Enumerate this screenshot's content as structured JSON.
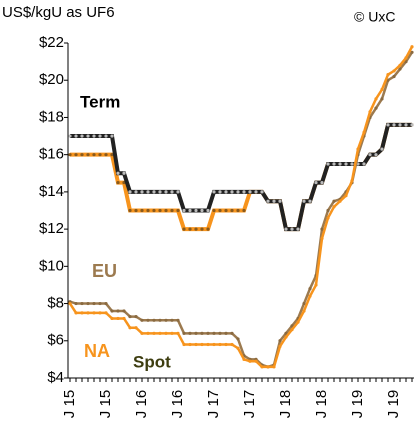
{
  "chart_data": {
    "type": "line",
    "ylabel": "US$/kgU as UF6",
    "source": "© UxC",
    "annotations": [
      "Term",
      "EU",
      "NA",
      "Spot"
    ],
    "categories": [
      "J 15",
      null,
      null,
      null,
      null,
      null,
      "J 15",
      null,
      null,
      null,
      null,
      null,
      "J 16",
      null,
      null,
      null,
      null,
      null,
      "J 16",
      null,
      null,
      null,
      null,
      null,
      "J 17",
      null,
      null,
      null,
      null,
      null,
      "J 17",
      null,
      null,
      null,
      null,
      null,
      "J 18",
      null,
      null,
      null,
      null,
      null,
      "J 18",
      null,
      null,
      null,
      null,
      null,
      "J 19",
      null,
      null,
      null,
      null,
      null,
      "J 19",
      null,
      null,
      null
    ],
    "series": [
      {
        "name": "Term NA",
        "color": "#f7941d",
        "dot": "#8a5a1c",
        "width": 4,
        "values": [
          16,
          16,
          16,
          16,
          16,
          16,
          16,
          16,
          14.5,
          14.5,
          13,
          13,
          13,
          13,
          13,
          13,
          13,
          13,
          13,
          12,
          12,
          12,
          12,
          12,
          13,
          13,
          13,
          13,
          13,
          13,
          14,
          14,
          14,
          13.5,
          13.5,
          13.5,
          12,
          12,
          12,
          13.5,
          13.5,
          14.5,
          14.5,
          15.5,
          15.5,
          15.5,
          15.5,
          15.5,
          15.5,
          15.5,
          16,
          16,
          16.3,
          17.6,
          17.6,
          17.6,
          17.6,
          17.6
        ]
      },
      {
        "name": "Term EU",
        "color": "#222222",
        "dot": "#bbbbbb",
        "width": 4,
        "values": [
          17,
          17,
          17,
          17,
          17,
          17,
          17,
          17,
          15,
          15,
          14,
          14,
          14,
          14,
          14,
          14,
          14,
          14,
          14,
          13,
          13,
          13,
          13,
          13,
          14,
          14,
          14,
          14,
          14,
          14,
          14,
          14,
          14,
          13.5,
          13.5,
          13.5,
          12,
          12,
          12,
          13.5,
          13.5,
          14.5,
          14.5,
          15.5,
          15.5,
          15.5,
          15.5,
          15.5,
          15.5,
          15.5,
          16,
          16,
          16.3,
          17.6,
          17.6,
          17.6,
          17.6,
          17.6
        ]
      },
      {
        "name": "Spot EU",
        "color": "#9c7a4f",
        "dot": "#8a6a40",
        "width": 2.5,
        "values": [
          8.1,
          8,
          8,
          8,
          8,
          8,
          8,
          7.6,
          7.6,
          7.6,
          7.3,
          7.3,
          7.1,
          7.1,
          7.1,
          7.1,
          7.1,
          7.1,
          7.1,
          6.4,
          6.4,
          6.4,
          6.4,
          6.4,
          6.4,
          6.4,
          6.4,
          6.4,
          6.1,
          5.2,
          5,
          5,
          4.7,
          4.6,
          4.7,
          6,
          6.4,
          6.8,
          7.2,
          8,
          8.8,
          9.5,
          12,
          13,
          13.5,
          13.6,
          14,
          14.5,
          16,
          17,
          18,
          18.5,
          19,
          20,
          20.2,
          20.6,
          21,
          21.5
        ]
      },
      {
        "name": "Spot NA",
        "color": "#f7941d",
        "dot": "#f7941d",
        "width": 2.5,
        "values": [
          8,
          7.5,
          7.5,
          7.5,
          7.5,
          7.5,
          7.5,
          7.2,
          7.2,
          7.2,
          6.7,
          6.7,
          6.4,
          6.4,
          6.4,
          6.4,
          6.4,
          6.4,
          6.4,
          5.8,
          5.8,
          5.8,
          5.8,
          5.8,
          5.8,
          5.8,
          5.8,
          5.8,
          5.6,
          5,
          4.9,
          4.9,
          4.6,
          4.6,
          4.6,
          5.7,
          6.2,
          6.6,
          7,
          7.6,
          8.4,
          9,
          11.5,
          12.6,
          13.2,
          13.5,
          13.8,
          14.6,
          16.3,
          17.2,
          18.3,
          19,
          19.5,
          20.3,
          20.5,
          20.8,
          21.2,
          21.8
        ]
      }
    ],
    "ylim": [
      4,
      22
    ],
    "yticks": [
      {
        "value": 4,
        "label": "$4"
      },
      {
        "value": 6,
        "label": "$6"
      },
      {
        "value": 8,
        "label": "$8"
      },
      {
        "value": 10,
        "label": "$10"
      },
      {
        "value": 12,
        "label": "$12"
      },
      {
        "value": 14,
        "label": "$14"
      },
      {
        "value": 16,
        "label": "$16"
      },
      {
        "value": 18,
        "label": "$18"
      },
      {
        "value": 20,
        "label": "$20"
      },
      {
        "value": 22,
        "label": "$22"
      }
    ]
  }
}
